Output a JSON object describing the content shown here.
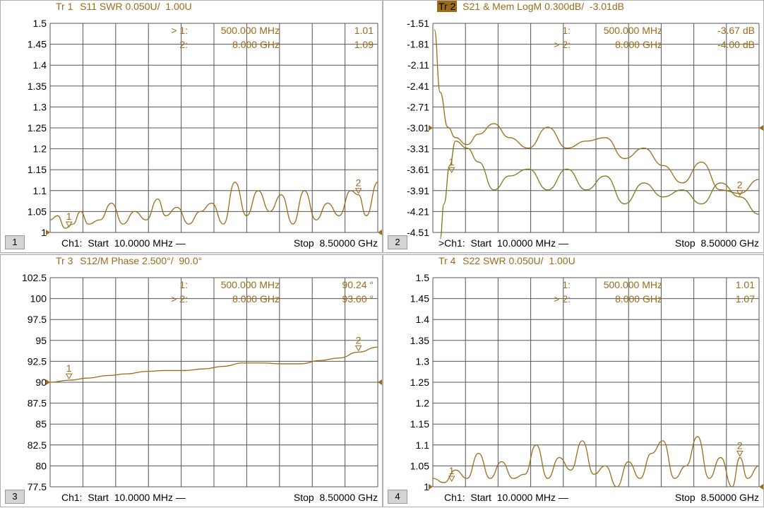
{
  "colors": {
    "trace": "#9c6b1a",
    "trace2": "#7f7a1a",
    "grid": "#555555",
    "text": "#000000"
  },
  "panes": [
    {
      "id": "tr1",
      "title_tr": "Tr 1",
      "title_rest": "S11 SWR 0.050U/  1.00U",
      "active": false,
      "ch_num": "1",
      "foot_left": "Ch1:  Start  10.0000 MHz —",
      "foot_right": "Stop  8.50000 GHz",
      "markers": [
        {
          "prefix": "> 1:",
          "freq": "500.000  MHz",
          "value": "1.01"
        },
        {
          "prefix": "2:",
          "freq": "8.000  GHz",
          "value": "1.09"
        }
      ]
    },
    {
      "id": "tr2",
      "title_tr": "Tr 2",
      "title_rest": "S21 & Mem LogM 0.300dB/  -3.01dB",
      "active": true,
      "ch_num": "2",
      "foot_left": ">Ch1:  Start  10.0000 MHz —",
      "foot_right": "Stop  8.50000 GHz",
      "markers": [
        {
          "prefix": "1:",
          "freq": "500.000  MHz",
          "value": "-3.67 dB"
        },
        {
          "prefix": "> 2:",
          "freq": "8.000  GHz",
          "value": "-4.00 dB"
        }
      ]
    },
    {
      "id": "tr3",
      "title_tr": "Tr 3",
      "title_rest": "S12/M Phase 2.500°/  90.0°",
      "active": false,
      "ch_num": "3",
      "foot_left": "Ch1:  Start  10.0000 MHz —",
      "foot_right": "Stop  8.50000 GHz",
      "markers": [
        {
          "prefix": "1:",
          "freq": "500.000  MHz",
          "value": "90.24 °"
        },
        {
          "prefix": "> 2:",
          "freq": "8.000  GHz",
          "value": "93.60 °"
        }
      ]
    },
    {
      "id": "tr4",
      "title_tr": "Tr 4",
      "title_rest": "S22 SWR 0.050U/  1.00U",
      "active": false,
      "ch_num": "4",
      "foot_left": "Ch1:  Start  10.0000 MHz —",
      "foot_right": "Stop  8.50000 GHz",
      "markers": [
        {
          "prefix": "1:",
          "freq": "500.000  MHz",
          "value": "1.01"
        },
        {
          "prefix": "> 2:",
          "freq": "8.000  GHz",
          "value": "1.07"
        }
      ]
    }
  ],
  "chart_data": [
    {
      "type": "line",
      "title": "S11 SWR 0.050U/  1.00U",
      "xlim": [
        0.01,
        8.5
      ],
      "ylim": [
        1,
        1.5
      ],
      "yticks": [
        "1.5",
        "1.45",
        "1.4",
        "1.35",
        "1.3",
        "1.25",
        "1.2",
        "1.15",
        "1.1",
        "1.05",
        "1"
      ],
      "ytick_values": [
        1.5,
        1.45,
        1.4,
        1.35,
        1.3,
        1.25,
        1.2,
        1.15,
        1.1,
        1.05,
        1.0
      ],
      "markers": [
        {
          "label": "1",
          "x": 0.5,
          "y": 1.01
        },
        {
          "label": "2",
          "x": 8.0,
          "y": 1.09
        }
      ],
      "series": [
        {
          "values_x": [
            0.01,
            0.2,
            0.4,
            0.6,
            0.8,
            1.0,
            1.3,
            1.6,
            1.9,
            2.2,
            2.5,
            2.8,
            3.0,
            3.3,
            3.6,
            3.9,
            4.2,
            4.5,
            4.8,
            5.1,
            5.4,
            5.7,
            6.0,
            6.3,
            6.6,
            6.9,
            7.2,
            7.5,
            7.8,
            8.0,
            8.2,
            8.5
          ],
          "values": [
            1.03,
            1.04,
            1.01,
            1.02,
            1.05,
            1.02,
            1.03,
            1.07,
            1.02,
            1.05,
            1.03,
            1.08,
            1.04,
            1.06,
            1.02,
            1.05,
            1.07,
            1.02,
            1.12,
            1.04,
            1.1,
            1.05,
            1.09,
            1.02,
            1.1,
            1.03,
            1.07,
            1.04,
            1.1,
            1.09,
            1.04,
            1.12
          ]
        }
      ]
    },
    {
      "type": "line",
      "title": "S21 & Mem LogM 0.300dB/  -3.01dB",
      "xlim": [
        0.01,
        8.5
      ],
      "ylim": [
        -4.51,
        -1.51
      ],
      "yticks": [
        "-1.51",
        "-1.81",
        "-2.11",
        "-2.41",
        "-2.71",
        "-3.01",
        "-3.31",
        "-3.61",
        "-3.91",
        "-4.21",
        "-4.51"
      ],
      "ytick_values": [
        -1.51,
        -1.81,
        -2.11,
        -2.41,
        -2.71,
        -3.01,
        -3.31,
        -3.61,
        -3.91,
        -4.21,
        -4.51
      ],
      "markers": [
        {
          "label": "1",
          "x": 0.5,
          "y": -3.67
        },
        {
          "label": "2",
          "x": 8.0,
          "y": -4.0
        }
      ],
      "series": [
        {
          "values_x": [
            0.05,
            0.2,
            0.4,
            0.6,
            0.9,
            1.2,
            1.6,
            2.0,
            2.5,
            3.0,
            3.5,
            4.0,
            4.5,
            5.0,
            5.5,
            6.0,
            6.5,
            7.0,
            7.5,
            8.0,
            8.5
          ],
          "values": [
            -1.6,
            -2.5,
            -3.0,
            -3.15,
            -3.25,
            -3.1,
            -2.95,
            -3.15,
            -3.3,
            -3.0,
            -3.3,
            -3.2,
            -3.15,
            -3.45,
            -3.3,
            -3.55,
            -3.8,
            -3.5,
            -3.9,
            -3.95,
            -3.75
          ]
        },
        {
          "values_x": [
            0.2,
            0.3,
            0.45,
            0.6,
            0.9,
            1.2,
            1.6,
            2.0,
            2.5,
            3.0,
            3.5,
            4.0,
            4.5,
            5.0,
            5.5,
            6.0,
            6.5,
            7.0,
            7.5,
            8.0,
            8.5
          ],
          "values": [
            -4.6,
            -4.1,
            -3.55,
            -3.2,
            -3.3,
            -3.5,
            -3.9,
            -3.7,
            -3.6,
            -3.9,
            -3.6,
            -3.9,
            -3.7,
            -4.1,
            -3.8,
            -4.0,
            -3.9,
            -4.1,
            -3.8,
            -4.0,
            -4.25
          ]
        }
      ]
    },
    {
      "type": "line",
      "title": "S12/M Phase 2.500°/  90.0°",
      "xlim": [
        0.01,
        8.5
      ],
      "ylim": [
        77.5,
        102.5
      ],
      "yticks": [
        "102.5",
        "100",
        "97.5",
        "95",
        "92.5",
        "90",
        "87.5",
        "85",
        "82.5",
        "80",
        "77.5"
      ],
      "ytick_values": [
        102.5,
        100,
        97.5,
        95,
        92.5,
        90,
        87.5,
        85,
        82.5,
        80,
        77.5
      ],
      "markers": [
        {
          "label": "1",
          "x": 0.5,
          "y": 90.24
        },
        {
          "label": "2",
          "x": 8.0,
          "y": 93.6
        }
      ],
      "series": [
        {
          "values_x": [
            0.01,
            0.5,
            1.0,
            1.5,
            2.0,
            2.5,
            3.0,
            3.5,
            4.0,
            4.5,
            5.0,
            5.5,
            6.0,
            6.5,
            7.0,
            7.5,
            8.0,
            8.5
          ],
          "values": [
            90.0,
            90.24,
            90.5,
            90.8,
            91.0,
            91.3,
            91.4,
            91.4,
            91.6,
            91.9,
            92.3,
            92.3,
            92.2,
            92.2,
            92.6,
            92.9,
            93.6,
            94.2
          ]
        }
      ]
    },
    {
      "type": "line",
      "title": "S22 SWR 0.050U/  1.00U",
      "xlim": [
        0.01,
        8.5
      ],
      "ylim": [
        1,
        1.5
      ],
      "yticks": [
        "1.5",
        "1.45",
        "1.4",
        "1.35",
        "1.3",
        "1.25",
        "1.2",
        "1.15",
        "1.1",
        "1.05",
        "1"
      ],
      "ytick_values": [
        1.5,
        1.45,
        1.4,
        1.35,
        1.3,
        1.25,
        1.2,
        1.15,
        1.1,
        1.05,
        1.0
      ],
      "markers": [
        {
          "label": "1",
          "x": 0.5,
          "y": 1.01
        },
        {
          "label": "2",
          "x": 8.0,
          "y": 1.07
        }
      ],
      "series": [
        {
          "values_x": [
            0.01,
            0.3,
            0.6,
            0.9,
            1.2,
            1.5,
            1.8,
            2.1,
            2.4,
            2.7,
            3.0,
            3.3,
            3.6,
            3.9,
            4.2,
            4.5,
            4.8,
            5.1,
            5.4,
            5.7,
            6.0,
            6.3,
            6.6,
            6.9,
            7.2,
            7.5,
            7.8,
            8.0,
            8.2,
            8.5
          ],
          "values": [
            1.02,
            1.01,
            1.04,
            1.02,
            1.08,
            1.02,
            1.06,
            1.02,
            1.03,
            1.1,
            1.02,
            1.07,
            1.04,
            1.11,
            1.03,
            1.05,
            1.0,
            1.06,
            1.02,
            1.08,
            1.11,
            1.02,
            1.05,
            1.12,
            1.02,
            1.07,
            1.0,
            1.07,
            1.02,
            1.05
          ]
        }
      ]
    }
  ]
}
